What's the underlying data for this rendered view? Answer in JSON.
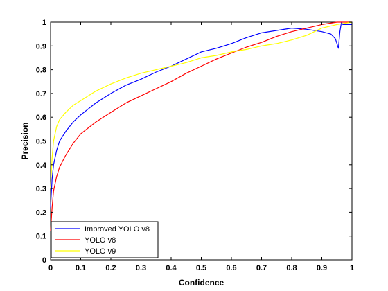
{
  "chart_data": {
    "type": "line",
    "title": "",
    "xlabel": "Confidence",
    "ylabel": "Precision",
    "xlim": [
      0,
      1
    ],
    "ylim": [
      0,
      1
    ],
    "x_ticks": [
      "0",
      "0.1",
      "0.2",
      "0.3",
      "0.4",
      "0.5",
      "0.6",
      "0.7",
      "0.8",
      "0.9",
      "1"
    ],
    "y_ticks": [
      "0",
      "0.1",
      "0.2",
      "0.3",
      "0.4",
      "0.5",
      "0.6",
      "0.7",
      "0.8",
      "0.9",
      "1"
    ],
    "grid": false,
    "legend_position": "bottom-left",
    "series": [
      {
        "name": "Improved YOLO v8",
        "color": "#0000ff",
        "x": [
          0,
          0.005,
          0.01,
          0.02,
          0.03,
          0.05,
          0.075,
          0.1,
          0.15,
          0.2,
          0.25,
          0.3,
          0.35,
          0.4,
          0.45,
          0.5,
          0.55,
          0.6,
          0.65,
          0.7,
          0.75,
          0.8,
          0.85,
          0.9,
          0.93,
          0.945,
          0.955,
          0.96,
          0.965,
          0.97,
          1.0
        ],
        "y": [
          0.22,
          0.34,
          0.4,
          0.46,
          0.5,
          0.54,
          0.58,
          0.61,
          0.66,
          0.7,
          0.735,
          0.76,
          0.79,
          0.815,
          0.845,
          0.875,
          0.89,
          0.91,
          0.935,
          0.955,
          0.965,
          0.975,
          0.97,
          0.96,
          0.95,
          0.93,
          0.89,
          0.96,
          1.0,
          0.99,
          0.99
        ]
      },
      {
        "name": "YOLO v8",
        "color": "#ff0000",
        "x": [
          0,
          0.005,
          0.01,
          0.02,
          0.03,
          0.05,
          0.075,
          0.1,
          0.15,
          0.2,
          0.25,
          0.3,
          0.35,
          0.4,
          0.45,
          0.5,
          0.55,
          0.6,
          0.65,
          0.7,
          0.75,
          0.8,
          0.85,
          0.9,
          0.95,
          1.0
        ],
        "y": [
          0.12,
          0.22,
          0.29,
          0.35,
          0.39,
          0.44,
          0.49,
          0.53,
          0.58,
          0.62,
          0.66,
          0.69,
          0.72,
          0.75,
          0.785,
          0.815,
          0.845,
          0.87,
          0.895,
          0.915,
          0.94,
          0.96,
          0.975,
          0.99,
          1.0,
          1.0
        ]
      },
      {
        "name": "YOLO v9",
        "color": "#ffff00",
        "x": [
          0,
          0.005,
          0.01,
          0.02,
          0.03,
          0.05,
          0.075,
          0.1,
          0.15,
          0.2,
          0.25,
          0.3,
          0.35,
          0.4,
          0.45,
          0.5,
          0.55,
          0.6,
          0.65,
          0.7,
          0.75,
          0.8,
          0.85,
          0.9,
          0.95,
          1.0
        ],
        "y": [
          0.3,
          0.43,
          0.5,
          0.56,
          0.59,
          0.62,
          0.65,
          0.67,
          0.71,
          0.74,
          0.765,
          0.785,
          0.8,
          0.815,
          0.83,
          0.85,
          0.86,
          0.875,
          0.885,
          0.9,
          0.91,
          0.925,
          0.945,
          0.975,
          0.99,
          1.0
        ]
      }
    ]
  }
}
